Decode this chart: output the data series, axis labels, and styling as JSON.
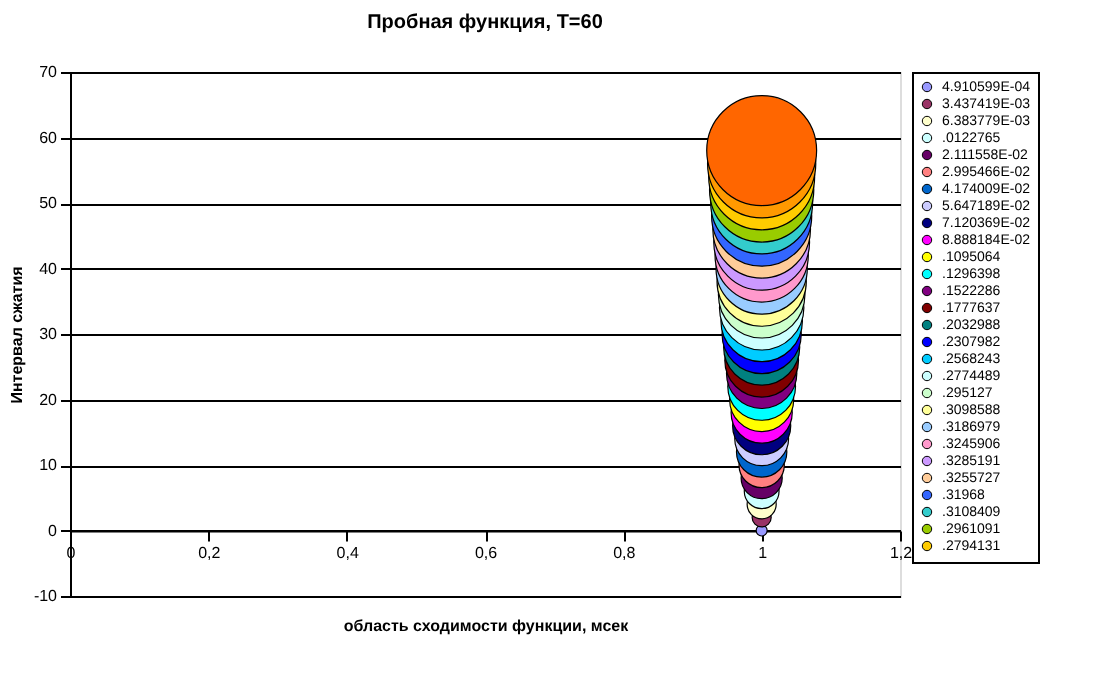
{
  "chart_data": {
    "type": "bubble",
    "title": "Пробная функция, T=60",
    "xlabel": "область сходимости функции, мсек",
    "ylabel": "Интервал сжатия",
    "xlim": [
      0,
      1.2
    ],
    "xticks": [
      0,
      {
        "value": 0.2,
        "label": "0,2"
      },
      {
        "value": 0.4,
        "label": "0,4"
      },
      {
        "value": 0.6,
        "label": "0,6"
      },
      {
        "value": 0.8,
        "label": "0,8"
      },
      1,
      {
        "value": 1.2,
        "label": "1,2"
      }
    ],
    "ylim": [
      -10,
      70
    ],
    "yticks": [
      -10,
      0,
      10,
      20,
      30,
      40,
      50,
      60,
      70
    ],
    "grid": "y",
    "legend": "right",
    "x": [
      1
    ],
    "series": [
      {
        "name": "4.910599E-04",
        "color": "#9999ff",
        "values": [
          0
        ],
        "sizes": [
          0.01
        ]
      },
      {
        "name": "3.437419E-03",
        "color": "#993366",
        "values": [
          2
        ],
        "sizes": [
          0.03
        ]
      },
      {
        "name": "6.383779E-03",
        "color": "#ffffcc",
        "values": [
          4
        ],
        "sizes": [
          0.07
        ]
      },
      {
        "name": ".0122765",
        "color": "#ccffff",
        "values": [
          6
        ],
        "sizes": [
          0.1
        ]
      },
      {
        "name": "2.111558E-02",
        "color": "#660066",
        "values": [
          8
        ],
        "sizes": [
          0.14
        ]
      },
      {
        "name": "2.995466E-02",
        "color": "#ff8080",
        "values": [
          10
        ],
        "sizes": [
          0.17
        ]
      },
      {
        "name": "4.174009E-02",
        "color": "#0066cc",
        "values": [
          12
        ],
        "sizes": [
          0.21
        ]
      },
      {
        "name": "5.647189E-02",
        "color": "#ccccff",
        "values": [
          14
        ],
        "sizes": [
          0.24
        ]
      },
      {
        "name": "7.120369E-02",
        "color": "#000080",
        "values": [
          16
        ],
        "sizes": [
          0.28
        ]
      },
      {
        "name": "8.888184E-02",
        "color": "#ff00ff",
        "values": [
          18
        ],
        "sizes": [
          0.31
        ]
      },
      {
        "name": ".1095064",
        "color": "#ffff00",
        "values": [
          20
        ],
        "sizes": [
          0.34
        ]
      },
      {
        "name": ".1296398",
        "color": "#00ffff",
        "values": [
          22
        ],
        "sizes": [
          0.38
        ]
      },
      {
        "name": ".1522286",
        "color": "#800080",
        "values": [
          24
        ],
        "sizes": [
          0.41
        ]
      },
      {
        "name": ".1777637",
        "color": "#800000",
        "values": [
          26
        ],
        "sizes": [
          0.45
        ]
      },
      {
        "name": ".2032988",
        "color": "#008080",
        "values": [
          28
        ],
        "sizes": [
          0.48
        ]
      },
      {
        "name": ".2307982",
        "color": "#0000ff",
        "values": [
          30
        ],
        "sizes": [
          0.52
        ]
      },
      {
        "name": ".2568243",
        "color": "#00ccff",
        "values": [
          32
        ],
        "sizes": [
          0.55
        ]
      },
      {
        "name": ".2774489",
        "color": "#ccffff",
        "values": [
          34
        ],
        "sizes": [
          0.59
        ]
      },
      {
        "name": ".295127",
        "color": "#ccffcc",
        "values": [
          36
        ],
        "sizes": [
          0.62
        ]
      },
      {
        "name": ".3098588",
        "color": "#ffff99",
        "values": [
          38
        ],
        "sizes": [
          0.66
        ]
      },
      {
        "name": ".3186979",
        "color": "#99ccff",
        "values": [
          40
        ],
        "sizes": [
          0.69
        ]
      },
      {
        "name": ".3245906",
        "color": "#ff99cc",
        "values": [
          42
        ],
        "sizes": [
          0.72
        ]
      },
      {
        "name": ".3285191",
        "color": "#cc99ff",
        "values": [
          44
        ],
        "sizes": [
          0.76
        ]
      },
      {
        "name": ".3255727",
        "color": "#ffcc99",
        "values": [
          46
        ],
        "sizes": [
          0.79
        ]
      },
      {
        "name": ".31968",
        "color": "#3366ff",
        "values": [
          48
        ],
        "sizes": [
          0.83
        ]
      },
      {
        "name": ".3108409",
        "color": "#33cccc",
        "values": [
          50
        ],
        "sizes": [
          0.86
        ]
      },
      {
        "name": ".2961091",
        "color": "#99cc00",
        "values": [
          52
        ],
        "sizes": [
          0.9
        ]
      },
      {
        "name": ".2794131",
        "color": "#ffcc00",
        "values": [
          54
        ],
        "sizes": [
          0.93
        ]
      },
      {
        "color": "#ff9900",
        "values": [
          56
        ],
        "sizes": [
          0.97
        ]
      },
      {
        "color": "#ff6600",
        "values": [
          58
        ],
        "sizes": [
          1
        ]
      }
    ]
  }
}
